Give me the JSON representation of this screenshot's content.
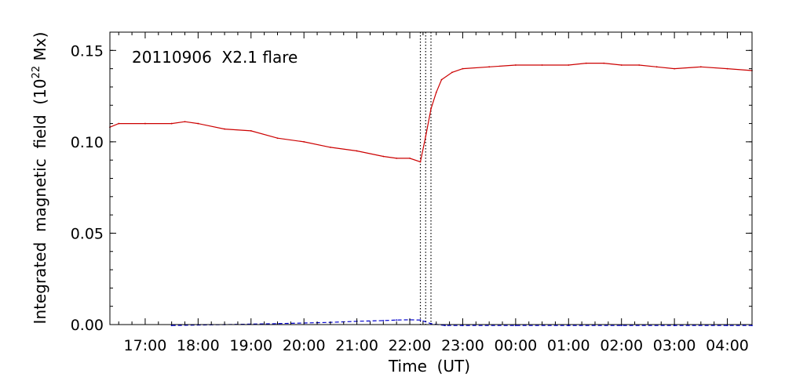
{
  "chart_data": {
    "type": "line",
    "annotation": "20110906  X2.1 flare",
    "xlabel": "Time  (UT)",
    "ylabel_main": "Integrated  magnetic  field  (10",
    "ylabel_sup": "22",
    "ylabel_end": " Mx)",
    "xlim": [
      "2011-09-06 16:20",
      "2011-09-07 04:28"
    ],
    "ylim": [
      0.0,
      0.16
    ],
    "x_tick_values": [
      "2011-09-06 17:00",
      "2011-09-06 18:00",
      "2011-09-06 19:00",
      "2011-09-06 20:00",
      "2011-09-06 21:00",
      "2011-09-06 22:00",
      "2011-09-06 23:00",
      "2011-09-07 00:00",
      "2011-09-07 01:00",
      "2011-09-07 02:00",
      "2011-09-07 03:00",
      "2011-09-07 04:00"
    ],
    "x_tick_labels": [
      "17:00",
      "18:00",
      "19:00",
      "20:00",
      "21:00",
      "22:00",
      "23:00",
      "00:00",
      "01:00",
      "02:00",
      "03:00",
      "04:00"
    ],
    "y_ticks": [
      0.0,
      0.05,
      0.1,
      0.15
    ],
    "y_tick_labels": [
      "0.00",
      "0.05",
      "0.10",
      "0.15"
    ],
    "vlines": [
      "2011-09-06 22:12",
      "2011-09-06 22:18",
      "2011-09-06 22:24"
    ],
    "series": [
      {
        "color": "#cc0000",
        "style": "solid",
        "x": [
          "2011-09-06 16:20",
          "2011-09-06 16:30",
          "2011-09-06 17:00",
          "2011-09-06 17:30",
          "2011-09-06 17:45",
          "2011-09-06 18:00",
          "2011-09-06 18:30",
          "2011-09-06 19:00",
          "2011-09-06 19:30",
          "2011-09-06 20:00",
          "2011-09-06 20:30",
          "2011-09-06 21:00",
          "2011-09-06 21:30",
          "2011-09-06 21:45",
          "2011-09-06 22:00",
          "2011-09-06 22:12",
          "2011-09-06 22:18",
          "2011-09-06 22:24",
          "2011-09-06 22:30",
          "2011-09-06 22:36",
          "2011-09-06 22:48",
          "2011-09-06 23:00",
          "2011-09-06 23:30",
          "2011-09-07 00:00",
          "2011-09-07 00:30",
          "2011-09-07 01:00",
          "2011-09-07 01:20",
          "2011-09-07 01:40",
          "2011-09-07 02:00",
          "2011-09-07 02:20",
          "2011-09-07 02:40",
          "2011-09-07 03:00",
          "2011-09-07 03:30",
          "2011-09-07 04:00",
          "2011-09-07 04:28"
        ],
        "y": [
          0.108,
          0.11,
          0.11,
          0.11,
          0.111,
          0.11,
          0.107,
          0.106,
          0.102,
          0.1,
          0.097,
          0.095,
          0.092,
          0.091,
          0.091,
          0.089,
          0.103,
          0.118,
          0.127,
          0.134,
          0.138,
          0.14,
          0.141,
          0.142,
          0.142,
          0.142,
          0.143,
          0.143,
          0.142,
          0.142,
          0.141,
          0.14,
          0.141,
          0.14,
          0.139
        ]
      },
      {
        "color": "#0000cc",
        "style": "dashed",
        "x": [
          "2011-09-06 17:30",
          "2011-09-06 18:30",
          "2011-09-06 19:30",
          "2011-09-06 20:30",
          "2011-09-06 21:00",
          "2011-09-06 21:30",
          "2011-09-06 21:45",
          "2011-09-06 22:00",
          "2011-09-06 22:12",
          "2011-09-06 22:24",
          "2011-09-06 22:40",
          "2011-09-06 23:00",
          "2011-09-07 00:00",
          "2011-09-07 01:00",
          "2011-09-07 02:00",
          "2011-09-07 03:00",
          "2011-09-07 04:00",
          "2011-09-07 04:28"
        ],
        "y": [
          -0.0005,
          0.0,
          0.0005,
          0.0012,
          0.0018,
          0.0022,
          0.0025,
          0.0026,
          0.0025,
          0.0005,
          -0.0005,
          -0.0005,
          -0.0005,
          -0.0005,
          -0.0005,
          -0.0005,
          -0.0005,
          -0.0005
        ]
      }
    ]
  }
}
